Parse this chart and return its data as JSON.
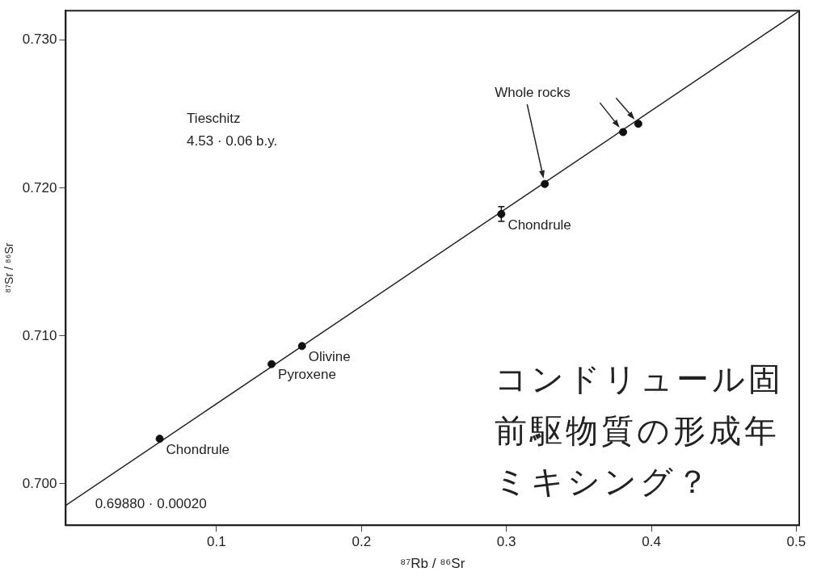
{
  "chart_data": {
    "type": "scatter",
    "xlabel": "⁸⁷Rb / ⁸⁶Sr",
    "ylabel": "⁸⁷Sr / ⁸⁶Sr",
    "xlim": [
      -0.004,
      0.502
    ],
    "ylim": [
      0.6972,
      0.732
    ],
    "xticks": [
      0.1,
      0.2,
      0.3,
      0.4,
      0.5
    ],
    "yticks": [
      {
        "value": 0.7,
        "label": "0.700"
      },
      {
        "value": 0.71,
        "label": "0.710"
      },
      {
        "value": 0.72,
        "label": "0.720"
      },
      {
        "value": 0.73,
        "label": "0.730"
      }
    ],
    "grid": false,
    "legend": false,
    "series": [
      {
        "marker": "circle",
        "color": "#111111",
        "x": [
          0.0608,
          0.138,
          0.159,
          0.2965,
          0.3265,
          0.3805,
          0.391
        ],
        "values": [
          0.70305,
          0.7081,
          0.70932,
          0.71825,
          0.72028,
          0.72379,
          0.72435
        ],
        "errors": [
          null,
          null,
          null,
          0.0005,
          null,
          null,
          null
        ]
      },
      {
        "type": "line",
        "color": "#222222",
        "x": [
          -0.004,
          0.502
        ],
        "values": [
          0.69854,
          0.73198
        ]
      }
    ],
    "annotations": [
      {
        "text": "Chondrule",
        "x": 0.0608,
        "y": 0.70305
      },
      {
        "text": "Pyroxene",
        "x": 0.138,
        "y": 0.7081
      },
      {
        "text": "Olivine",
        "x": 0.159,
        "y": 0.70932
      },
      {
        "text": "Chondrule",
        "x": 0.2965,
        "y": 0.71825
      },
      "Whole rocks",
      "Tieschitz",
      "4.53 · 0.06 b.y.",
      "0.69880 · 0.00020",
      "コンドリュール固",
      "前駆物質の形成年",
      "ミキシング？"
    ]
  }
}
